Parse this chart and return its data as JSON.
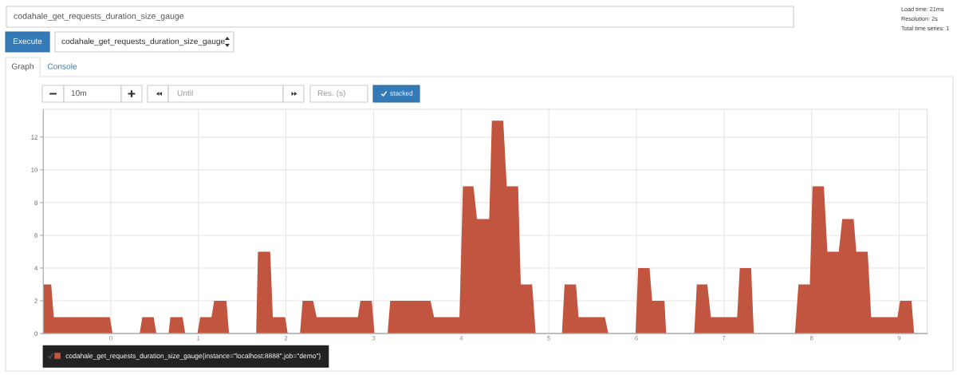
{
  "chart_data": {
    "type": "area",
    "title": "codahale_get_requests_duration_size_gauge",
    "x": [
      -0.77,
      -0.68,
      -0.65,
      -0.01,
      0.02,
      0.33,
      0.36,
      0.49,
      0.52,
      0.66,
      0.68,
      0.82,
      0.85,
      0.99,
      1.02,
      1.15,
      1.18,
      1.32,
      1.35,
      1.66,
      1.68,
      1.82,
      1.85,
      1.99,
      2.02,
      2.16,
      2.19,
      2.31,
      2.35,
      2.82,
      2.85,
      2.98,
      3.01,
      3.16,
      3.19,
      3.65,
      3.69,
      3.98,
      4.02,
      4.14,
      4.18,
      4.32,
      4.35,
      4.48,
      4.52,
      4.65,
      4.68,
      4.81,
      4.85,
      5.15,
      5.18,
      5.31,
      5.34,
      5.64,
      5.68,
      5.99,
      6.02,
      6.15,
      6.18,
      6.32,
      6.34,
      6.66,
      6.69,
      6.81,
      6.85,
      7.15,
      7.18,
      7.31,
      7.34,
      7.81,
      7.85,
      7.98,
      8.01,
      8.14,
      8.18,
      8.31,
      8.35,
      8.48,
      8.51,
      8.64,
      8.68,
      8.98,
      9.01,
      9.14,
      9.17
    ],
    "series": [
      {
        "name": "codahale_get_requests_duration_size_gauge{instance=\"localhost:8888\",job=\"demo\"}",
        "color": "#c1553f",
        "values": [
          3,
          3,
          1,
          1,
          0,
          0,
          1,
          1,
          0,
          0,
          1,
          1,
          0,
          0,
          1,
          1,
          2,
          2,
          0,
          0,
          5,
          5,
          1,
          1,
          0,
          0,
          2,
          2,
          1,
          1,
          2,
          2,
          0,
          0,
          2,
          2,
          1,
          1,
          9,
          9,
          7,
          7,
          13,
          13,
          9,
          9,
          3,
          3,
          0,
          0,
          3,
          3,
          1,
          1,
          0,
          0,
          4,
          4,
          2,
          2,
          0,
          0,
          3,
          3,
          1,
          1,
          4,
          4,
          0,
          0,
          3,
          3,
          9,
          9,
          5,
          5,
          7,
          7,
          5,
          5,
          1,
          1,
          2,
          2,
          0
        ]
      }
    ],
    "xlim": [
      -0.77,
      9.32
    ],
    "xticks": [
      0,
      1,
      2,
      3,
      4,
      5,
      6,
      7,
      8,
      9
    ],
    "ylim": [
      0,
      13.7
    ],
    "yticks": [
      0,
      2,
      4,
      6,
      8,
      10,
      12
    ],
    "grid": true,
    "legend": "bottom left",
    "annotations": [
      "Load time: 21ms",
      "Resolution: 2s",
      "Total time series: 1",
      "Execute",
      "codahale_get_requests_duration_size_gauge",
      "Graph",
      "Console",
      "10m",
      "Until",
      "Res. (s)",
      "stacked"
    ]
  }
}
